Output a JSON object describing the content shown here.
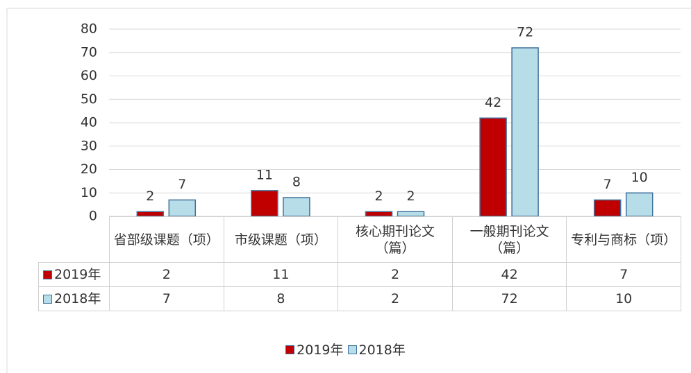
{
  "chart_data": {
    "type": "bar",
    "categories": [
      "省部级课题（项）",
      "市级课题（项）",
      "核心期刊论文（篇）",
      "一般期刊论文（篇）",
      "专利与商标（项）"
    ],
    "series": [
      {
        "name": "2019年",
        "color": "#c00000",
        "values": [
          2,
          11,
          2,
          42,
          7
        ]
      },
      {
        "name": "2018年",
        "color": "#b7dde8",
        "values": [
          7,
          8,
          2,
          72,
          10
        ]
      }
    ],
    "ylim": [
      0,
      80
    ],
    "yticks": [
      0,
      10,
      20,
      30,
      40,
      50,
      60,
      70,
      80
    ],
    "grid": true,
    "legend": "bottom",
    "data_table": true
  }
}
